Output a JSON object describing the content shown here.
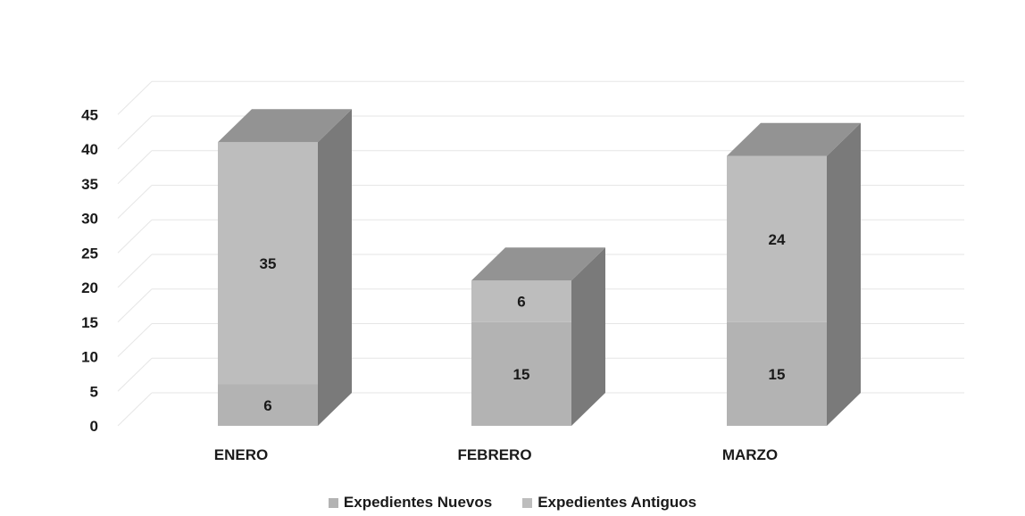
{
  "chart_data": {
    "type": "bar",
    "stacked": true,
    "style": "3d",
    "categories": [
      "ENERO",
      "FEBRERO",
      "MARZO"
    ],
    "series": [
      {
        "name": "Expedientes Nuevos",
        "values": [
          6,
          15,
          15
        ],
        "color": "#b3b3b3"
      },
      {
        "name": "Expedientes Antiguos",
        "values": [
          35,
          6,
          24
        ],
        "color": "#bdbdbd"
      }
    ],
    "yticks": [
      "0",
      "5",
      "10",
      "15",
      "20",
      "25",
      "30",
      "35",
      "40",
      "45"
    ],
    "ylim": [
      0,
      45
    ],
    "grid": true,
    "legend_position": "bottom",
    "colors": {
      "bar_front": "#b8b8b8",
      "bar_side": "#7a7a7a",
      "bar_top": "#939393",
      "grid": "#e6e6e6"
    }
  }
}
